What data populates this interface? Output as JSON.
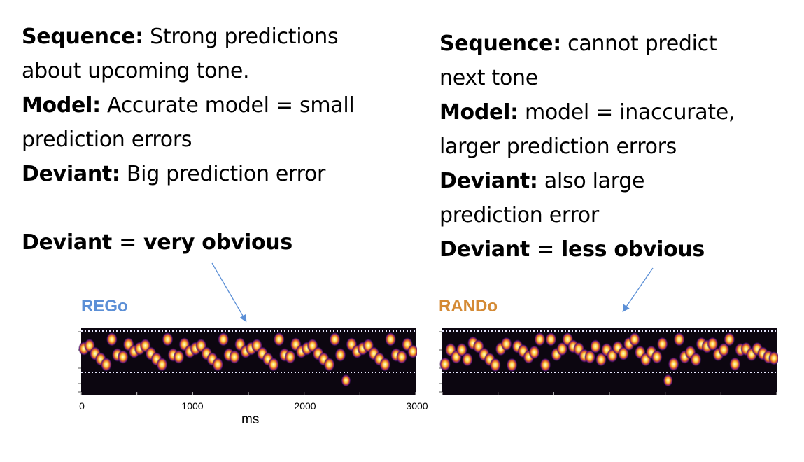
{
  "left": {
    "lines": [
      {
        "bold": "Sequence:",
        "text": " Strong predictions"
      },
      {
        "bold": "",
        "text": "about upcoming tone."
      },
      {
        "bold": "Model:",
        "text": " Accurate model = small"
      },
      {
        "bold": "",
        "text": "prediction errors"
      },
      {
        "bold": "Deviant:",
        "text": " Big prediction error"
      }
    ],
    "conclusion": "Deviant = very obvious"
  },
  "right": {
    "lines": [
      {
        "bold": "Sequence:",
        "text": " cannot predict"
      },
      {
        "bold": "",
        "text": "next tone"
      },
      {
        "bold": "Model:",
        "text": " model = inaccurate,"
      },
      {
        "bold": "",
        "text": "larger prediction errors"
      },
      {
        "bold": "Deviant:",
        "text": " also large"
      },
      {
        "bold": "",
        "text": "prediction error"
      }
    ],
    "conclusion": "Deviant = less obvious"
  },
  "colors": {
    "reg": "#5b8fd6",
    "rand": "#d48a35",
    "arrow": "#5b8fd6",
    "plot_bg": "#0c0610"
  },
  "chart_data": [
    {
      "type": "heatmap",
      "title": "REGo",
      "xlabel": "ms",
      "xlim": [
        0,
        3000
      ],
      "xticks": [
        "0",
        "1000",
        "2000",
        "3000"
      ],
      "tone_duration_ms": 50,
      "pattern_levels": [
        3,
        2.3,
        4.2,
        5.5,
        6.8,
        0.8,
        4.5,
        5,
        2,
        3.7
      ],
      "deviant": {
        "time_ms": 2350,
        "level": 10.6
      }
    },
    {
      "type": "heatmap",
      "title": "RANDo",
      "xlabel": "",
      "xlim": [
        0,
        3000
      ],
      "tone_duration_ms": 50,
      "levels": [
        6.7,
        3.3,
        5,
        3.3,
        5.6,
        1.7,
        2.5,
        4.4,
        5.6,
        6.9,
        3.1,
        1.9,
        6.9,
        2.5,
        3.6,
        5,
        3.9,
        0.8,
        6.9,
        0.8,
        4.4,
        3.1,
        0.8,
        2.5,
        3.1,
        4.7,
        5,
        2.5,
        5.6,
        3.3,
        4.7,
        2.8,
        4.2,
        1.9,
        0.8,
        3.9,
        5.6,
        3.9,
        5,
        1.9,
        6.7,
        0.8,
        5,
        3.9,
        5.6,
        1.9,
        2.5,
        1.9,
        4.4,
        3.3,
        0.8,
        6.7,
        3.3,
        3.1,
        4.4,
        3.1,
        4.2,
        5,
        5.3
      ],
      "deviant": {
        "time_ms": 2000,
        "level": 10.6
      }
    }
  ]
}
